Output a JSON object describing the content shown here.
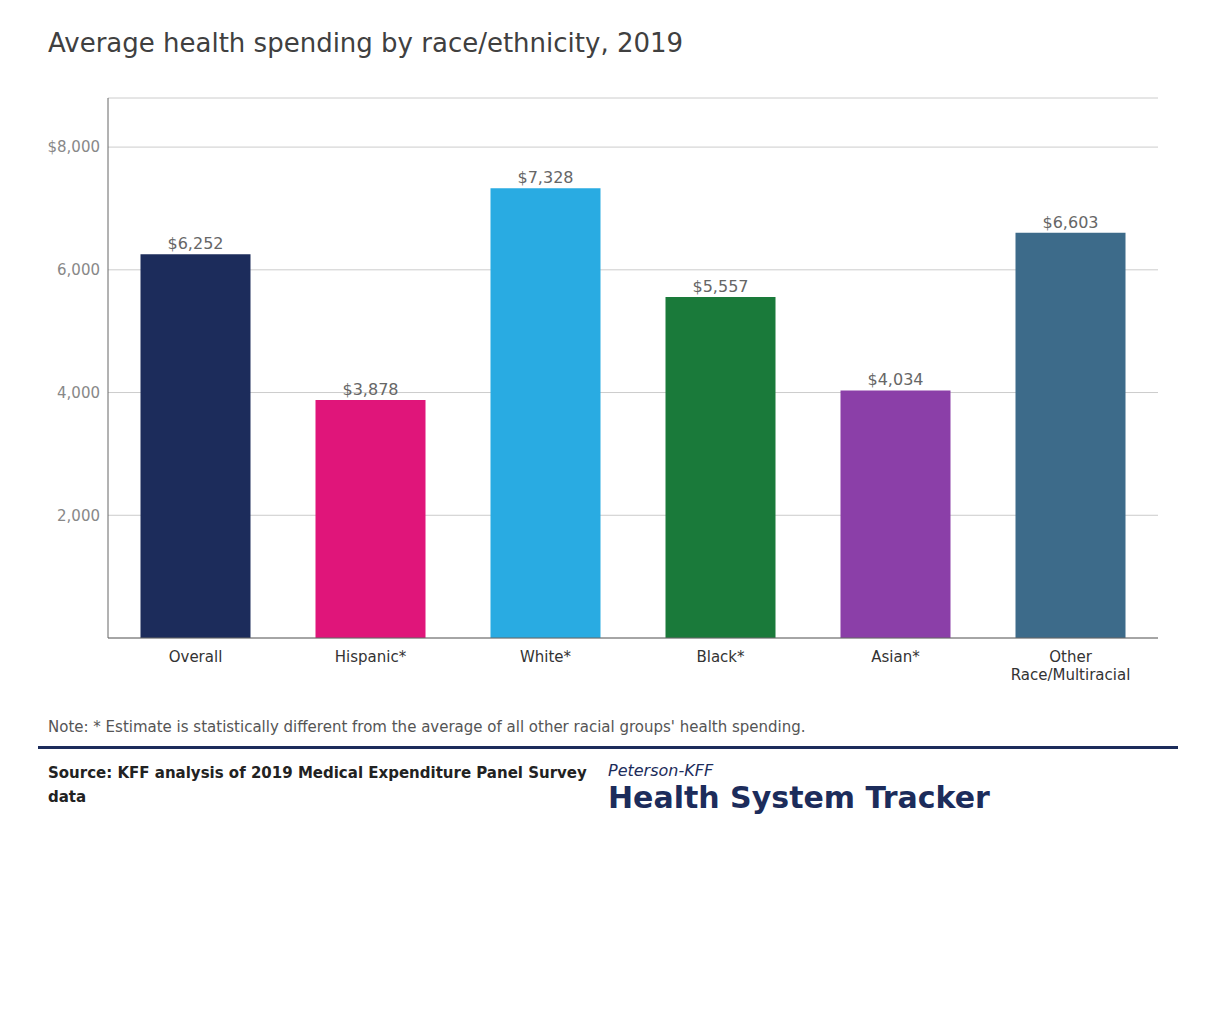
{
  "chart_data": {
    "type": "bar",
    "title": "Average health spending by race/ethnicity, 2019",
    "categories": [
      "Overall",
      "Hispanic*",
      "White*",
      "Black*",
      "Asian*",
      "Other\nRace/Multiracial"
    ],
    "values": [
      6252,
      3878,
      7328,
      5557,
      4034,
      6603
    ],
    "value_labels": [
      "$6,252",
      "$3,878",
      "$7,328",
      "$5,557",
      "$4,034",
      "$6,603"
    ],
    "data_labels": true,
    "colors": [
      "#1c2c5b",
      "#e0157a",
      "#29abe2",
      "#1a7a3a",
      "#8b3fa8",
      "#3d6b8a"
    ],
    "ylim": [
      0,
      8800
    ],
    "yticks": [
      {
        "value": 2000,
        "label": "2,000"
      },
      {
        "value": 4000,
        "label": "4,000"
      },
      {
        "value": 6000,
        "label": "6,000"
      },
      {
        "value": 8000,
        "label": "$8,000"
      }
    ],
    "grid": true,
    "annotations": [
      "Note: * Estimate is statistically different from the average of all other racial groups' health spending.",
      "Source: KFF analysis of 2019 Medical Expenditure Panel Survey",
      "data",
      "Peterson-KFF",
      "Health System Tracker"
    ]
  }
}
